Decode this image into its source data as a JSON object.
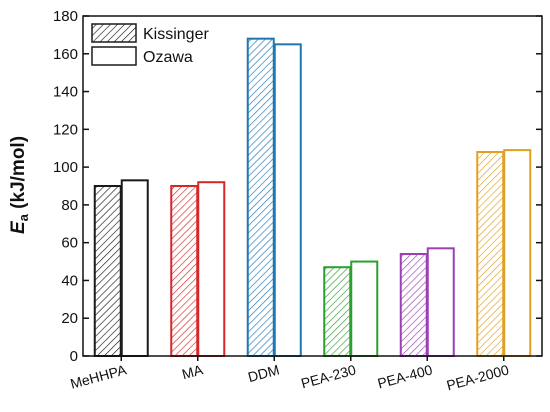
{
  "chart_data": {
    "type": "bar",
    "categories": [
      "MeHHPA",
      "MA",
      "DDM",
      "PEA-230",
      "PEA-400",
      "PEA-2000"
    ],
    "category_colors": [
      "#1a1a1a",
      "#d62728",
      "#1f77b4",
      "#2ca02c",
      "#9b3fb5",
      "#e0a020"
    ],
    "series": [
      {
        "name": "Kissinger",
        "style": "hatched",
        "values": [
          90,
          90,
          168,
          47,
          54,
          108
        ]
      },
      {
        "name": "Ozawa",
        "style": "open",
        "values": [
          93,
          92,
          165,
          50,
          57,
          109
        ]
      }
    ],
    "ylabel_main": "E",
    "ylabel_sub": "a",
    "ylabel_rest": " (kJ/mol)",
    "ylim": [
      0,
      180
    ],
    "yticks": [
      0,
      20,
      40,
      60,
      80,
      100,
      120,
      140,
      160,
      180
    ],
    "grid": false,
    "legend_position": "top-left"
  }
}
